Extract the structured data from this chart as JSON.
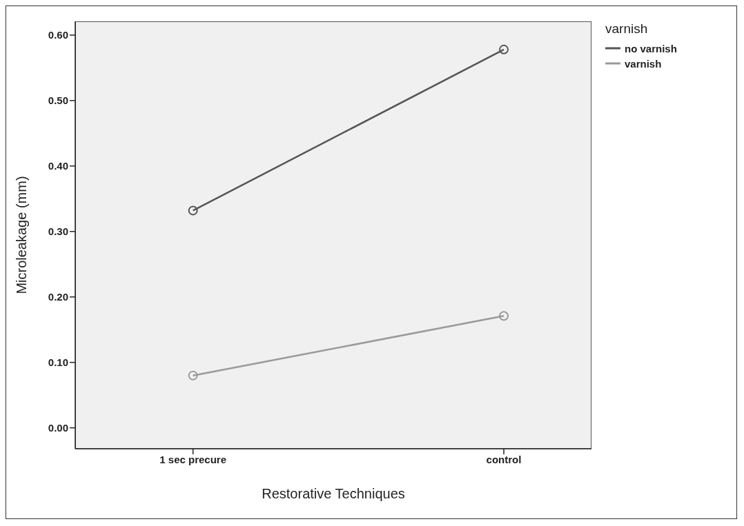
{
  "chart_data": {
    "type": "line",
    "xlabel": "Restorative Techniques",
    "ylabel": "Microleakage (mm)",
    "legend_title": "varnish",
    "categories": [
      "1 sec precure",
      "control"
    ],
    "series": [
      {
        "name": "no varnish",
        "color": "#555555",
        "values": [
          0.332,
          0.578
        ]
      },
      {
        "name": "varnish",
        "color": "#9a9a9a",
        "values": [
          0.08,
          0.171
        ]
      }
    ],
    "ylim": [
      -0.032,
      0.621
    ],
    "yticks": [
      {
        "value": 0,
        "label": "0.00"
      },
      {
        "value": 0.1,
        "label": "0.10"
      },
      {
        "value": 0.2,
        "label": "0.20"
      },
      {
        "value": 0.3,
        "label": "0.30"
      },
      {
        "value": 0.4,
        "label": "0.40"
      },
      {
        "value": 0.5,
        "label": "0.50"
      },
      {
        "value": 0.6,
        "label": "0.60"
      }
    ],
    "marker": "circle",
    "line_style": "solid",
    "legend": "top right",
    "grid": false
  }
}
